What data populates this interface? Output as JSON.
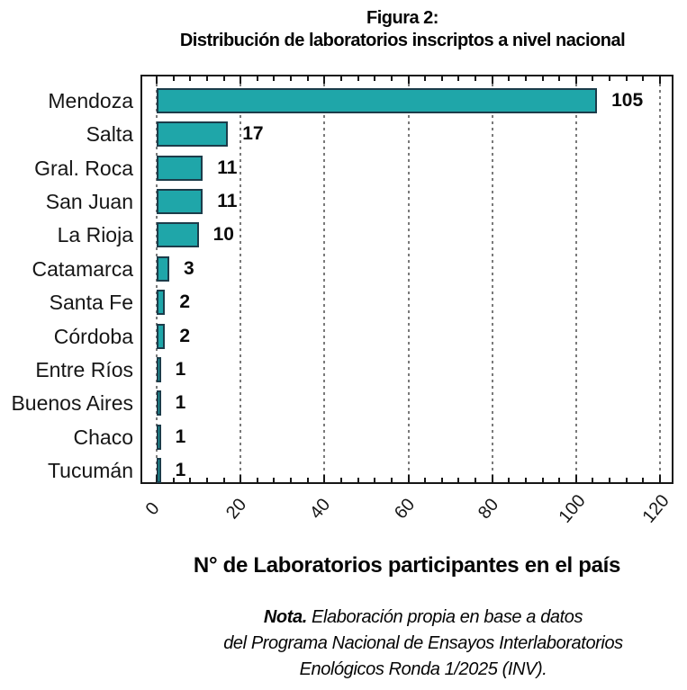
{
  "title": {
    "line1": "Figura 2:",
    "line2": "Distribución de laboratorios inscriptos a nivel nacional"
  },
  "chart_data": {
    "type": "bar",
    "orientation": "horizontal",
    "title": "Figura 2: Distribución de laboratorios inscriptos a nivel nacional",
    "categories": [
      "Mendoza",
      "Salta",
      "Gral. Roca",
      "San Juan",
      "La Rioja",
      "Catamarca",
      "Santa Fe",
      "Córdoba",
      "Entre Ríos",
      "Buenos Aires",
      "Chaco",
      "Tucumán"
    ],
    "values": [
      105,
      17,
      11,
      11,
      10,
      3,
      2,
      2,
      1,
      1,
      1,
      1
    ],
    "xlabel": "N° de Laboratorios participantes en el país",
    "ylabel": "",
    "xlim": [
      0,
      120
    ],
    "xticks": [
      0,
      20,
      40,
      60,
      80,
      100,
      120
    ],
    "minor_tick_step": 4,
    "grid": "vertical dashed gridlines at major ticks",
    "legend": "none",
    "value_labels": "bold, right of bar end",
    "bar_color": "#1FA6A9",
    "bar_border_color": "#1C3C4A",
    "gridline_color": "#7a7a7a"
  },
  "note": {
    "lead": "Nota.",
    "line1": "Elaboración propia en base a datos",
    "line2": "del Programa Nacional de Ensayos Interlaboratorios",
    "line3": "Enológicos Ronda 1/2025 (INV)."
  }
}
